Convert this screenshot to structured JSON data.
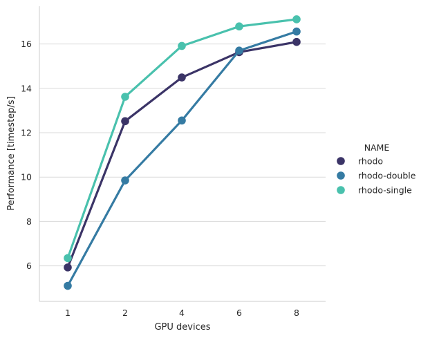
{
  "chart_data": {
    "type": "line",
    "categories": [
      "1",
      "2",
      "4",
      "6",
      "8"
    ],
    "xlabel": "GPU devices",
    "ylabel": "Performance [timestep/s]",
    "yticks": [
      6,
      8,
      10,
      12,
      14,
      16
    ],
    "ylim": [
      4.4,
      17.7
    ],
    "grid": "horizontal",
    "legend": {
      "title": "NAME",
      "placement": "right"
    },
    "series": [
      {
        "name": "rhodo",
        "color": "#3b3467",
        "values": [
          5.93,
          12.52,
          14.49,
          15.63,
          16.09
        ]
      },
      {
        "name": "rhodo-double",
        "color": "#357ba3",
        "values": [
          5.1,
          9.85,
          12.55,
          15.7,
          16.56
        ]
      },
      {
        "name": "rhodo-single",
        "color": "#49c1ad",
        "values": [
          6.35,
          13.62,
          15.91,
          16.79,
          17.11
        ]
      }
    ]
  }
}
